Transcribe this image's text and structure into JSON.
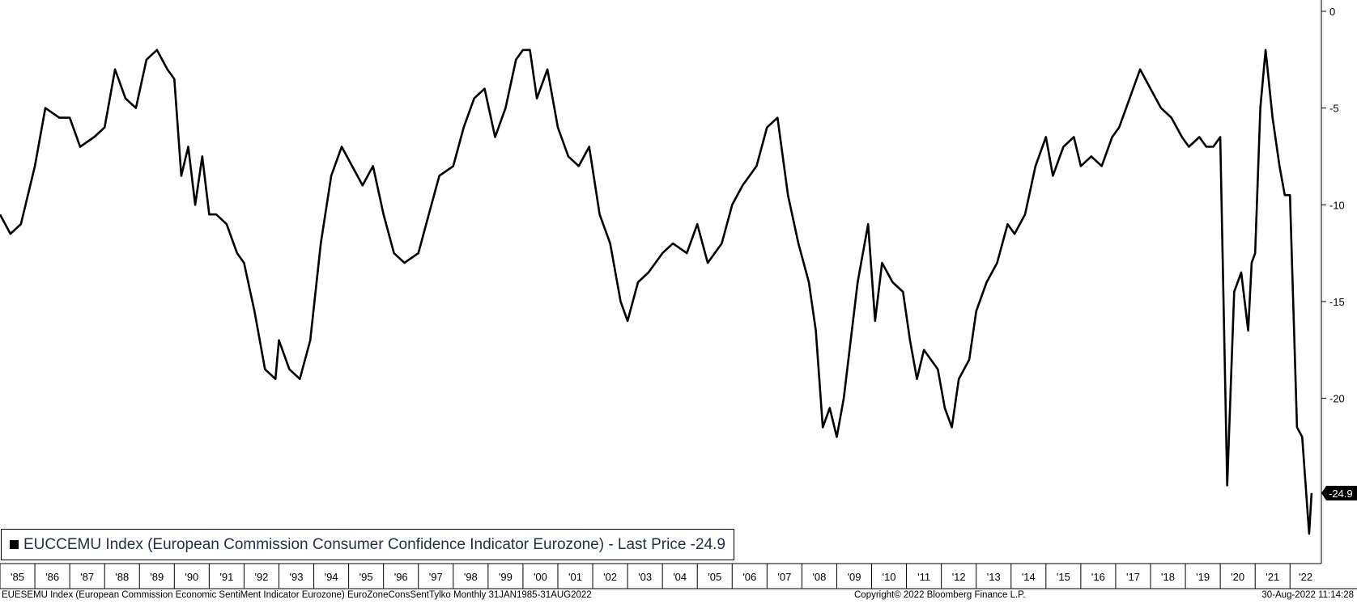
{
  "chart_data": {
    "type": "line",
    "series": [
      {
        "name": "EUCCEMU Index (European Commission Consumer Confidence Indicator Eurozone) - Last Price",
        "color": "#000000",
        "x": [
          1985.0,
          1985.3,
          1985.6,
          1986.0,
          1986.3,
          1986.7,
          1987.0,
          1987.3,
          1987.7,
          1988.0,
          1988.3,
          1988.6,
          1988.9,
          1989.2,
          1989.5,
          1989.8,
          1990.0,
          1990.2,
          1990.4,
          1990.6,
          1990.8,
          1991.0,
          1991.2,
          1991.5,
          1991.8,
          1992.0,
          1992.3,
          1992.6,
          1992.9,
          1993.0,
          1993.3,
          1993.6,
          1993.9,
          1994.2,
          1994.5,
          1994.8,
          1995.1,
          1995.4,
          1995.7,
          1996.0,
          1996.3,
          1996.6,
          1997.0,
          1997.3,
          1997.6,
          1998.0,
          1998.3,
          1998.6,
          1998.9,
          1999.2,
          1999.5,
          1999.8,
          2000.0,
          2000.2,
          2000.4,
          2000.7,
          2001.0,
          2001.3,
          2001.6,
          2001.9,
          2002.2,
          2002.5,
          2002.8,
          2003.0,
          2003.3,
          2003.6,
          2004.0,
          2004.3,
          2004.7,
          2005.0,
          2005.3,
          2005.7,
          2006.0,
          2006.3,
          2006.7,
          2007.0,
          2007.3,
          2007.6,
          2007.9,
          2008.2,
          2008.4,
          2008.6,
          2008.8,
          2009.0,
          2009.2,
          2009.4,
          2009.6,
          2009.9,
          2010.1,
          2010.3,
          2010.6,
          2010.9,
          2011.1,
          2011.3,
          2011.5,
          2011.7,
          2011.9,
          2012.1,
          2012.3,
          2012.5,
          2012.8,
          2013.0,
          2013.3,
          2013.6,
          2013.9,
          2014.1,
          2014.4,
          2014.7,
          2015.0,
          2015.2,
          2015.5,
          2015.8,
          2016.0,
          2016.3,
          2016.6,
          2016.9,
          2017.1,
          2017.4,
          2017.7,
          2018.0,
          2018.3,
          2018.6,
          2018.9,
          2019.1,
          2019.4,
          2019.6,
          2019.8,
          2020.0,
          2020.2,
          2020.4,
          2020.6,
          2020.8,
          2020.9,
          2021.0,
          2021.15,
          2021.3,
          2021.5,
          2021.7,
          2021.85,
          2022.0,
          2022.2,
          2022.35,
          2022.45,
          2022.55,
          2022.62
        ],
        "values": [
          -10.5,
          -11.5,
          -11.0,
          -8.0,
          -5.0,
          -5.5,
          -5.5,
          -7.0,
          -6.5,
          -6.0,
          -3.0,
          -4.5,
          -5.0,
          -2.5,
          -2.0,
          -3.0,
          -3.5,
          -8.5,
          -7.0,
          -10.0,
          -7.5,
          -10.5,
          -10.5,
          -11.0,
          -12.5,
          -13.0,
          -15.5,
          -18.5,
          -19.0,
          -17.0,
          -18.5,
          -19.0,
          -17.0,
          -12.0,
          -8.5,
          -7.0,
          -8.0,
          -9.0,
          -8.0,
          -10.5,
          -12.5,
          -13.0,
          -12.5,
          -10.5,
          -8.5,
          -8.0,
          -6.0,
          -4.5,
          -4.0,
          -6.5,
          -5.0,
          -2.5,
          -2.0,
          -2.0,
          -4.5,
          -3.0,
          -6.0,
          -7.5,
          -8.0,
          -7.0,
          -10.5,
          -12.0,
          -15.0,
          -16.0,
          -14.0,
          -13.5,
          -12.5,
          -12.0,
          -12.5,
          -11.0,
          -13.0,
          -12.0,
          -10.0,
          -9.0,
          -8.0,
          -6.0,
          -5.5,
          -9.5,
          -12.0,
          -14.0,
          -16.5,
          -21.5,
          -20.5,
          -22.0,
          -20.0,
          -17.0,
          -14.0,
          -11.0,
          -16.0,
          -13.0,
          -14.0,
          -14.5,
          -17.0,
          -19.0,
          -17.5,
          -18.0,
          -18.5,
          -20.5,
          -21.5,
          -19.0,
          -18.0,
          -15.5,
          -14.0,
          -13.0,
          -11.0,
          -11.5,
          -10.5,
          -8.0,
          -6.5,
          -8.5,
          -7.0,
          -6.5,
          -8.0,
          -7.5,
          -8.0,
          -6.5,
          -6.0,
          -4.5,
          -3.0,
          -4.0,
          -5.0,
          -5.5,
          -6.5,
          -7.0,
          -6.5,
          -7.0,
          -7.0,
          -6.5,
          -24.5,
          -14.5,
          -13.5,
          -16.5,
          -13.0,
          -12.5,
          -5.0,
          -2.0,
          -5.5,
          -8.0,
          -9.5,
          -9.5,
          -21.5,
          -22.0,
          -24.5,
          -27.0,
          -24.9
        ]
      }
    ],
    "last_value_label": "-24.9",
    "ylim": [
      -28.5,
      0.5
    ],
    "yticks": [
      0,
      -5,
      -10,
      -15,
      -20
    ],
    "ytick_labels": [
      "0",
      "-5",
      "-10",
      "-15",
      "-20"
    ],
    "xlim": [
      1985.0,
      2022.9
    ],
    "xtick_labels": [
      "'85",
      "'86",
      "'87",
      "'88",
      "'89",
      "'90",
      "'91",
      "'92",
      "'93",
      "'94",
      "'95",
      "'96",
      "'97",
      "'98",
      "'99",
      "'00",
      "'01",
      "'02",
      "'03",
      "'04",
      "'05",
      "'06",
      "'07",
      "'08",
      "'09",
      "'10",
      "'11",
      "'12",
      "'13",
      "'14",
      "'15",
      "'16",
      "'17",
      "'18",
      "'19",
      "'20",
      "'21",
      "'22"
    ],
    "xtick_years": [
      1985,
      1986,
      1987,
      1988,
      1989,
      1990,
      1991,
      1992,
      1993,
      1994,
      1995,
      1996,
      1997,
      1998,
      1999,
      2000,
      2001,
      2002,
      2003,
      2004,
      2005,
      2006,
      2007,
      2008,
      2009,
      2010,
      2011,
      2012,
      2013,
      2014,
      2015,
      2016,
      2017,
      2018,
      2019,
      2020,
      2021,
      2022
    ],
    "grid": false,
    "legend_position": "bottom-left"
  },
  "legend": {
    "text": "EUCCEMU Index (European Commission Consumer Confidence Indicator Eurozone) - Last Price -24.9"
  },
  "footer": {
    "left": "EUESEMU Index (European Commission Economic SentiMent Indicator Eurozone) EuroZoneConsSentTylko  Monthly 31JAN1985-31AUG2022",
    "center": "Copyright© 2022 Bloomberg Finance L.P.",
    "right": "30-Aug-2022 11:14:28"
  }
}
